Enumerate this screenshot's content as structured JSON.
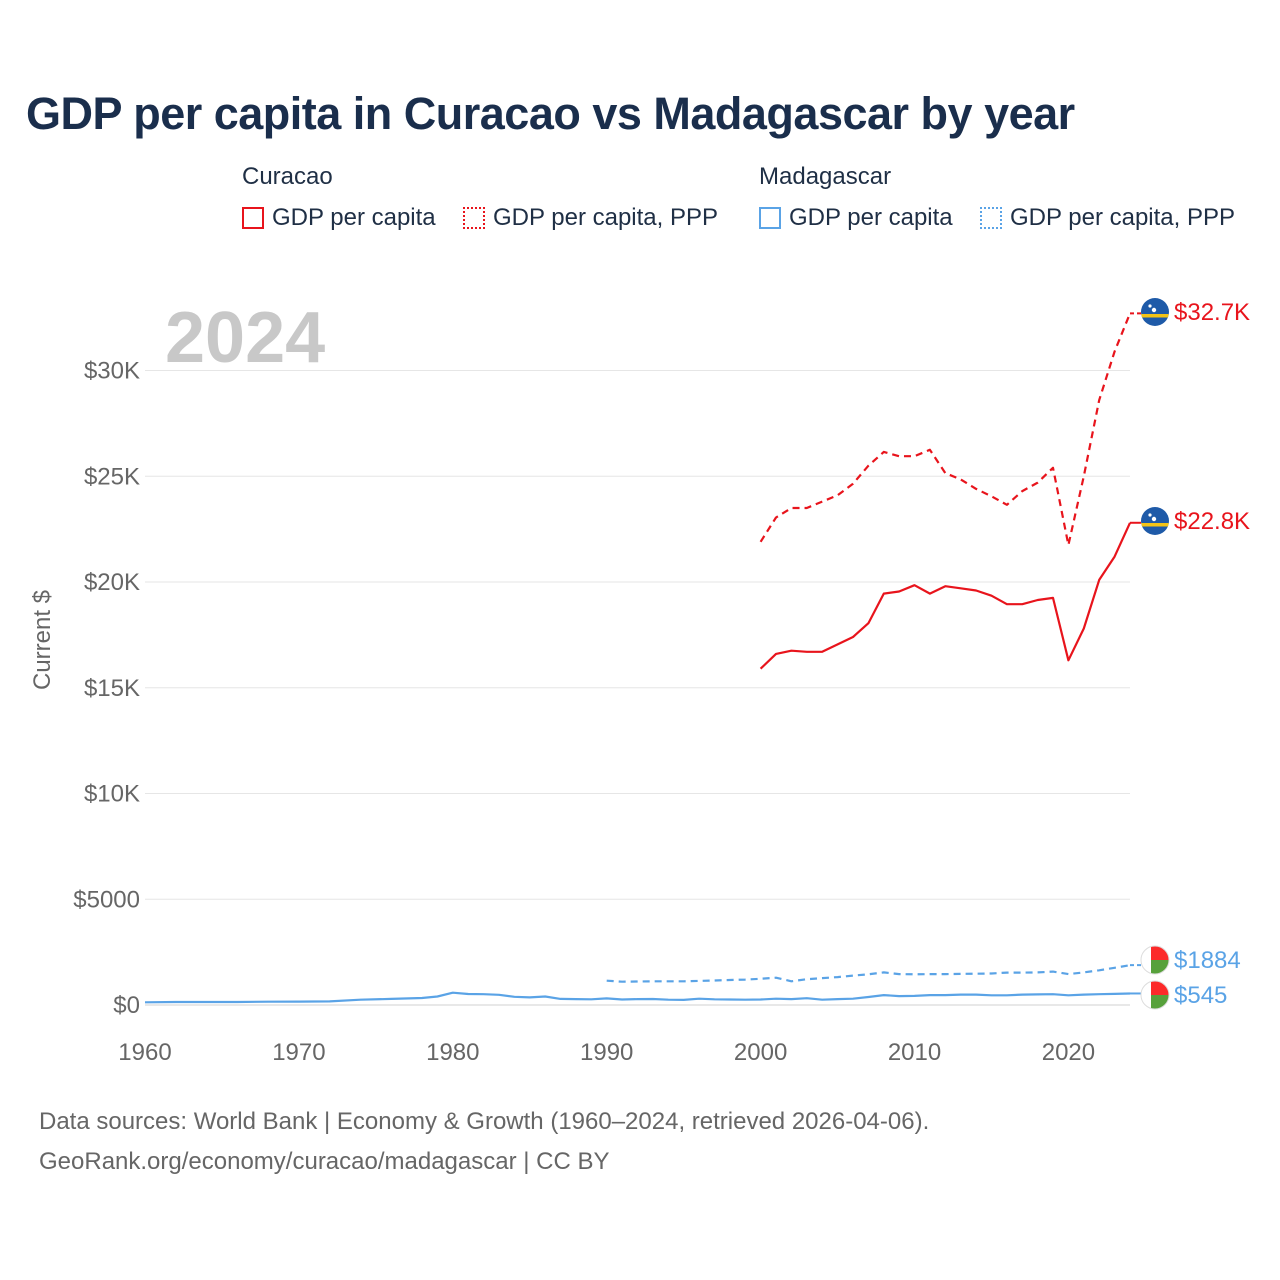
{
  "title": "GDP per capita in Curacao vs Madagascar by year",
  "legend": {
    "groups": [
      {
        "name": "Curacao",
        "items": [
          "GDP per capita",
          "GDP per capita, PPP"
        ]
      },
      {
        "name": "Madagascar",
        "items": [
          "GDP per capita",
          "GDP per capita, PPP"
        ]
      }
    ]
  },
  "colors": {
    "curacao": "#e8141c",
    "madagascar": "#5aa3e6"
  },
  "footer": {
    "line1": "Data sources: World Bank | Economy & Growth (1960–2024, retrieved 2026-04-06).",
    "line2": "GeoRank.org/economy/curacao/madagascar | CC BY"
  },
  "chart_data": {
    "type": "line",
    "year_label": "2024",
    "ylabel": "Current $",
    "xlim": [
      1960,
      2024
    ],
    "ylim": [
      0,
      33000
    ],
    "x_ticks": [
      1960,
      1970,
      1980,
      1990,
      2000,
      2010,
      2020
    ],
    "x_tick_labels": [
      "1960",
      "1970",
      "1980",
      "1990",
      "2000",
      "2010",
      "2020"
    ],
    "y_ticks": [
      0,
      5000,
      10000,
      15000,
      20000,
      25000,
      30000
    ],
    "y_tick_labels": [
      "$0",
      "$5000",
      "$10K",
      "$15K",
      "$20K",
      "$25K",
      "$30K"
    ],
    "grid": true,
    "series": [
      {
        "name": "Curacao GDP per capita",
        "country": "Curacao",
        "style": "solid",
        "end_label": "$22.8K",
        "x": [
          2000,
          2001,
          2002,
          2003,
          2004,
          2005,
          2006,
          2007,
          2008,
          2009,
          2010,
          2011,
          2012,
          2013,
          2014,
          2015,
          2016,
          2017,
          2018,
          2019,
          2020,
          2021,
          2022,
          2023,
          2024
        ],
        "values": [
          15900,
          16600,
          16750,
          16700,
          16700,
          17050,
          17400,
          18050,
          19450,
          19550,
          19850,
          19450,
          19800,
          19700,
          19600,
          19350,
          18950,
          18950,
          19150,
          19250,
          16300,
          17800,
          20100,
          21200,
          22800
        ]
      },
      {
        "name": "Curacao GDP per capita, PPP",
        "country": "Curacao",
        "style": "dashed",
        "end_label": "$32.7K",
        "x": [
          2000,
          2001,
          2002,
          2003,
          2004,
          2005,
          2006,
          2007,
          2008,
          2009,
          2010,
          2011,
          2012,
          2013,
          2014,
          2015,
          2016,
          2017,
          2018,
          2019,
          2020,
          2021,
          2022,
          2023,
          2024
        ],
        "values": [
          21900,
          23050,
          23500,
          23500,
          23800,
          24100,
          24650,
          25500,
          26150,
          25950,
          25950,
          26250,
          25150,
          24850,
          24400,
          24050,
          23650,
          24300,
          24700,
          25400,
          21750,
          25000,
          28600,
          30900,
          32700
        ]
      },
      {
        "name": "Madagascar GDP per capita",
        "country": "Madagascar",
        "style": "solid",
        "end_label": "$545",
        "x": [
          1960,
          1962,
          1964,
          1966,
          1968,
          1970,
          1972,
          1974,
          1976,
          1978,
          1979,
          1980,
          1981,
          1982,
          1983,
          1984,
          1985,
          1986,
          1987,
          1988,
          1989,
          1990,
          1991,
          1992,
          1993,
          1994,
          1995,
          1996,
          1997,
          1998,
          1999,
          2000,
          2001,
          2002,
          2003,
          2004,
          2005,
          2006,
          2007,
          2008,
          2009,
          2010,
          2011,
          2012,
          2013,
          2014,
          2015,
          2016,
          2017,
          2018,
          2019,
          2020,
          2021,
          2022,
          2023,
          2024
        ],
        "values": [
          130,
          140,
          140,
          140,
          155,
          160,
          170,
          250,
          290,
          330,
          400,
          580,
          520,
          510,
          480,
          390,
          360,
          400,
          290,
          280,
          270,
          310,
          260,
          280,
          285,
          250,
          240,
          300,
          270,
          260,
          250,
          260,
          300,
          280,
          320,
          250,
          280,
          300,
          380,
          470,
          420,
          430,
          470,
          470,
          490,
          490,
          460,
          460,
          490,
          500,
          510,
          460,
          490,
          510,
          525,
          545
        ]
      },
      {
        "name": "Madagascar GDP per capita, PPP",
        "country": "Madagascar",
        "style": "dashed",
        "end_label": "$1884",
        "x": [
          1990,
          1991,
          1992,
          1993,
          1994,
          1995,
          1996,
          1997,
          1998,
          1999,
          2000,
          2001,
          2002,
          2003,
          2004,
          2005,
          2006,
          2007,
          2008,
          2009,
          2010,
          2011,
          2012,
          2013,
          2014,
          2015,
          2016,
          2017,
          2018,
          2019,
          2020,
          2021,
          2022,
          2023,
          2024
        ],
        "values": [
          1150,
          1100,
          1110,
          1120,
          1120,
          1120,
          1140,
          1160,
          1180,
          1200,
          1240,
          1290,
          1120,
          1220,
          1270,
          1320,
          1390,
          1450,
          1540,
          1460,
          1450,
          1460,
          1460,
          1470,
          1480,
          1490,
          1530,
          1530,
          1540,
          1580,
          1460,
          1540,
          1640,
          1760,
          1884
        ]
      }
    ]
  }
}
